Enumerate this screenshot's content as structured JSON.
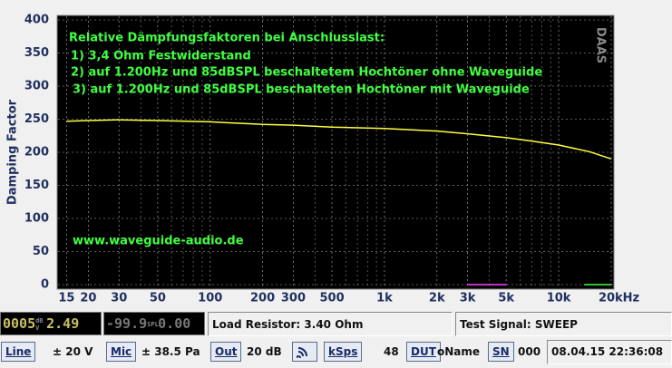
{
  "chart_data": {
    "type": "line",
    "ylabel": "Damping Factor",
    "watermark": "DAAS",
    "annotations": [
      "Relative Dämpfungsfaktoren bei Anschlusslast:",
      "1) 3,4 Ohm Festwiderstand",
      "2) auf 1.200Hz und 85dBSPL beschaltetem Hochtöner ohne Waveguide",
      "3) auf 1.200Hz und 85dBSPL beschalteten Hochtöner mit Waveguide",
      "www.waveguide-audio.de"
    ],
    "xscale": "log",
    "grid": true,
    "xlim": [
      13.4,
      20500
    ],
    "ylim": [
      0,
      400
    ],
    "yticks": [
      0,
      50,
      100,
      150,
      200,
      250,
      300,
      350,
      400
    ],
    "xticks": [
      15,
      20,
      30,
      50,
      100,
      200,
      300,
      500,
      {
        "value": 1000,
        "label": "1k"
      },
      {
        "value": 2000,
        "label": "2k"
      },
      {
        "value": 3000,
        "label": "3k"
      },
      {
        "value": 5000,
        "label": "5k"
      },
      {
        "value": 10000,
        "label": "10k"
      },
      {
        "value": 20000,
        "label": "20kHz"
      }
    ],
    "xminorticks": [
      40,
      60,
      70,
      80,
      90,
      400,
      600,
      700,
      800,
      900,
      4000,
      6000,
      7000,
      8000,
      9000
    ],
    "series": [
      {
        "color": "#ffff40",
        "x": [
          15,
          20,
          30,
          50,
          100,
          200,
          300,
          500,
          1000,
          2000,
          3000,
          5000,
          7000,
          10000,
          15000,
          20000
        ],
        "values": [
          247,
          248,
          249,
          248,
          246,
          242,
          241,
          238,
          236,
          232,
          228,
          222,
          217,
          211,
          201,
          190
        ]
      },
      {
        "color": "#ff40ff",
        "x": [
          3000,
          5000
        ],
        "values": [
          0,
          0
        ]
      },
      {
        "color": "#40ff40",
        "x": [
          14000,
          20000
        ],
        "values": [
          0,
          0
        ]
      }
    ]
  },
  "meters": {
    "left_a": "0005",
    "left_units": "dB V",
    "left_b": "2.49",
    "right_a": "-99.9",
    "right_units": "SPL",
    "right_b": "0.00"
  },
  "status": {
    "load_resistor": "Load Resistor: 3.40 Ohm",
    "test_signal": "Test Signal: SWEEP"
  },
  "toolbar": {
    "line": "Line",
    "line_range": "± 20 V",
    "mic": "Mic",
    "mic_range": "± 38.5 Pa",
    "out": "Out",
    "out_gain": "20 dB",
    "ksps": "kSps",
    "ksps_value": "48",
    "dut": "DUT",
    "dut_name": "oName",
    "sn": "SN",
    "sn_value": "000",
    "datetime": "08.04.15 22:36:08"
  }
}
